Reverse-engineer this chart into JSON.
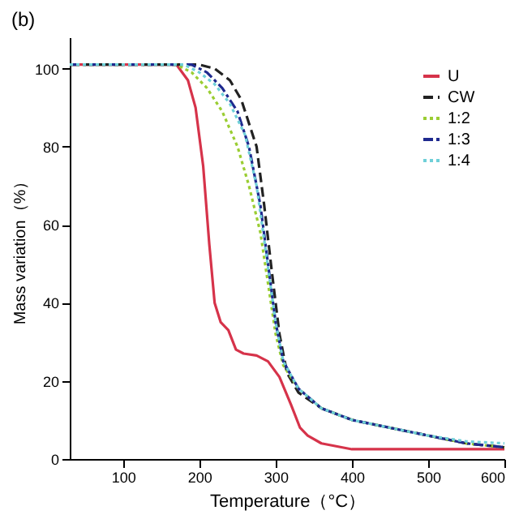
{
  "chart_data": {
    "type": "line",
    "title": "(b)",
    "xlabel": "Temperature（°C）",
    "ylabel": "Mass variation（%）",
    "xlim": [
      30,
      600
    ],
    "xticks": [
      100,
      200,
      300,
      400,
      500,
      600
    ],
    "ylim": [
      0,
      108
    ],
    "yticks": [
      0,
      20,
      40,
      60,
      80,
      100
    ],
    "grid": false,
    "legend": "top right",
    "marker": "none",
    "series": [
      {
        "name": "U",
        "color": "#d6334a",
        "line_style": "solid",
        "x": [
          30,
          170,
          185,
          195,
          205,
          213,
          220,
          228,
          238,
          248,
          258,
          275,
          290,
          305,
          320,
          332,
          342,
          360,
          400,
          600
        ],
        "values": [
          101,
          101,
          97,
          90,
          75,
          55,
          40,
          35,
          33,
          28,
          27,
          26.5,
          25,
          21,
          14,
          8,
          6,
          4,
          2.5,
          2.5
        ]
      },
      {
        "name": "CW",
        "color": "#222222",
        "line_style": "dashed",
        "x": [
          30,
          200,
          220,
          240,
          255,
          265,
          275,
          285,
          295,
          305,
          315,
          330,
          360,
          400,
          450,
          500,
          550,
          600
        ],
        "values": [
          101,
          101,
          100,
          97,
          92,
          86,
          80,
          65,
          48,
          32,
          22,
          17,
          13,
          10,
          8,
          6,
          4,
          3
        ]
      },
      {
        "name": "1:2",
        "color": "#9acd32",
        "line_style": "dotted",
        "x": [
          30,
          170,
          190,
          210,
          230,
          250,
          265,
          280,
          290,
          300,
          310,
          330,
          360,
          400,
          450,
          500,
          550,
          600
        ],
        "values": [
          101,
          101,
          99,
          95,
          89,
          80,
          70,
          58,
          45,
          32,
          24,
          18,
          13,
          10,
          8,
          6,
          4,
          3
        ]
      },
      {
        "name": "1:3",
        "color": "#1f2a8f",
        "line_style": "dashdot",
        "x": [
          30,
          190,
          210,
          230,
          250,
          265,
          280,
          290,
          300,
          310,
          330,
          360,
          400,
          450,
          500,
          550,
          600
        ],
        "values": [
          101,
          101,
          99,
          95,
          89,
          80,
          65,
          50,
          35,
          25,
          18,
          13,
          10,
          8,
          6,
          4,
          3
        ]
      },
      {
        "name": "1:4",
        "color": "#6fd0d8",
        "line_style": "dotted",
        "x": [
          30,
          180,
          200,
          220,
          240,
          260,
          275,
          288,
          300,
          310,
          330,
          360,
          400,
          450,
          500,
          550,
          600
        ],
        "values": [
          101,
          101,
          99,
          96,
          91,
          83,
          70,
          52,
          35,
          25,
          18,
          13,
          10,
          8,
          6,
          4.5,
          4
        ]
      }
    ]
  }
}
